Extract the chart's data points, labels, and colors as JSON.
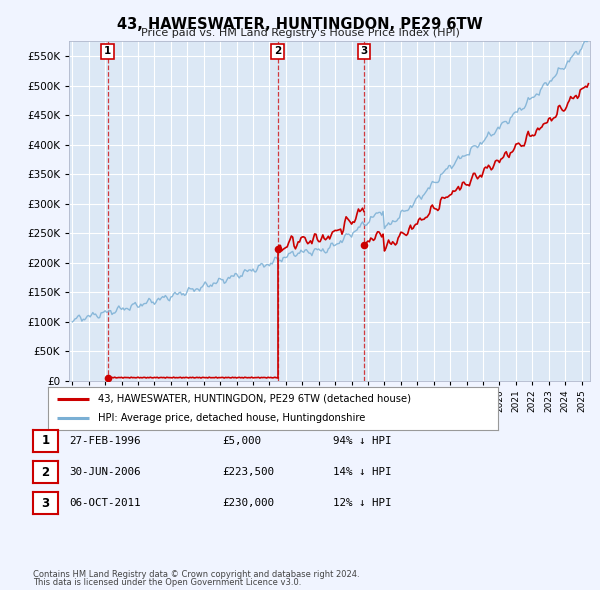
{
  "title": "43, HAWESWATER, HUNTINGDON, PE29 6TW",
  "subtitle": "Price paid vs. HM Land Registry's House Price Index (HPI)",
  "hpi_label": "HPI: Average price, detached house, Huntingdonshire",
  "price_label": "43, HAWESWATER, HUNTINGDON, PE29 6TW (detached house)",
  "hpi_color": "#7aafd4",
  "price_color": "#cc0000",
  "dashed_color": "#cc0000",
  "fig_bg": "#f0f4ff",
  "plot_bg": "#dce8f5",
  "grid_color": "#ffffff",
  "transactions": [
    {
      "num": 1,
      "date": "27-FEB-1996",
      "price": 5000,
      "label": "94% ↓ HPI",
      "x_year": 1996.15
    },
    {
      "num": 2,
      "date": "30-JUN-2006",
      "price": 223500,
      "label": "14% ↓ HPI",
      "x_year": 2006.5
    },
    {
      "num": 3,
      "date": "06-OCT-2011",
      "price": 230000,
      "label": "12% ↓ HPI",
      "x_year": 2011.75
    }
  ],
  "footer_line1": "Contains HM Land Registry data © Crown copyright and database right 2024.",
  "footer_line2": "This data is licensed under the Open Government Licence v3.0.",
  "ylim": [
    0,
    575000
  ],
  "yticks": [
    0,
    50000,
    100000,
    150000,
    200000,
    250000,
    300000,
    350000,
    400000,
    450000,
    500000,
    550000
  ],
  "xlim_start": 1993.8,
  "xlim_end": 2025.5
}
